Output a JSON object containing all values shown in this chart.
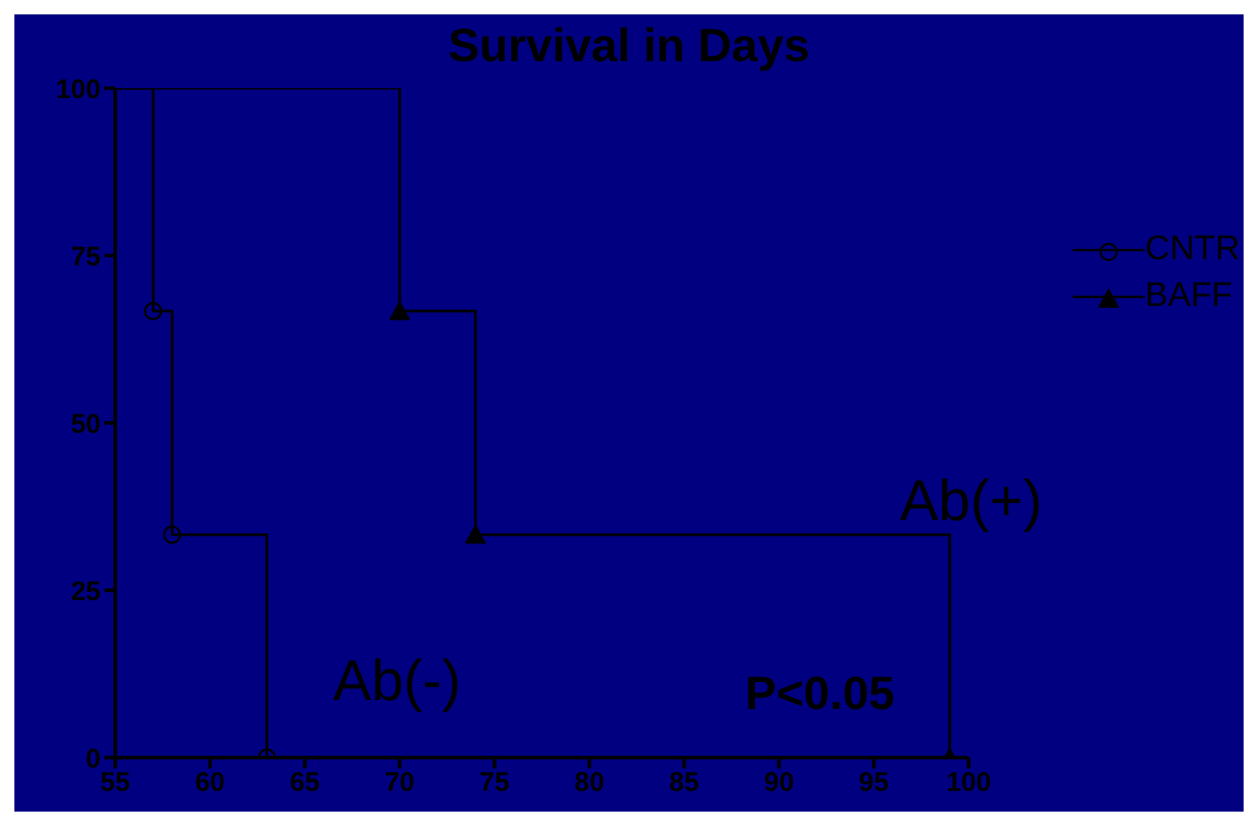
{
  "chart_data": {
    "type": "step",
    "title": "Survival in Days",
    "xlim": [
      55,
      100
    ],
    "xticks": [
      55,
      60,
      65,
      70,
      75,
      80,
      85,
      90,
      95,
      100
    ],
    "ylim": [
      0,
      100
    ],
    "yticks": [
      0,
      25,
      50,
      75,
      100
    ],
    "grid": false,
    "legend": "top right",
    "series": [
      {
        "name": "CNTR",
        "color": "#000000",
        "marker": "circle",
        "x": [
          55,
          57,
          58,
          63
        ],
        "values": [
          100,
          66.7,
          33.3,
          0
        ]
      },
      {
        "name": "BAFF",
        "color": "#000000",
        "marker": "triangle",
        "x": [
          55,
          70,
          74,
          99
        ],
        "values": [
          100,
          66.7,
          33.3,
          0
        ]
      }
    ],
    "annotations": [
      "Ab(-)",
      "Ab(+)",
      "P<0.05"
    ]
  }
}
